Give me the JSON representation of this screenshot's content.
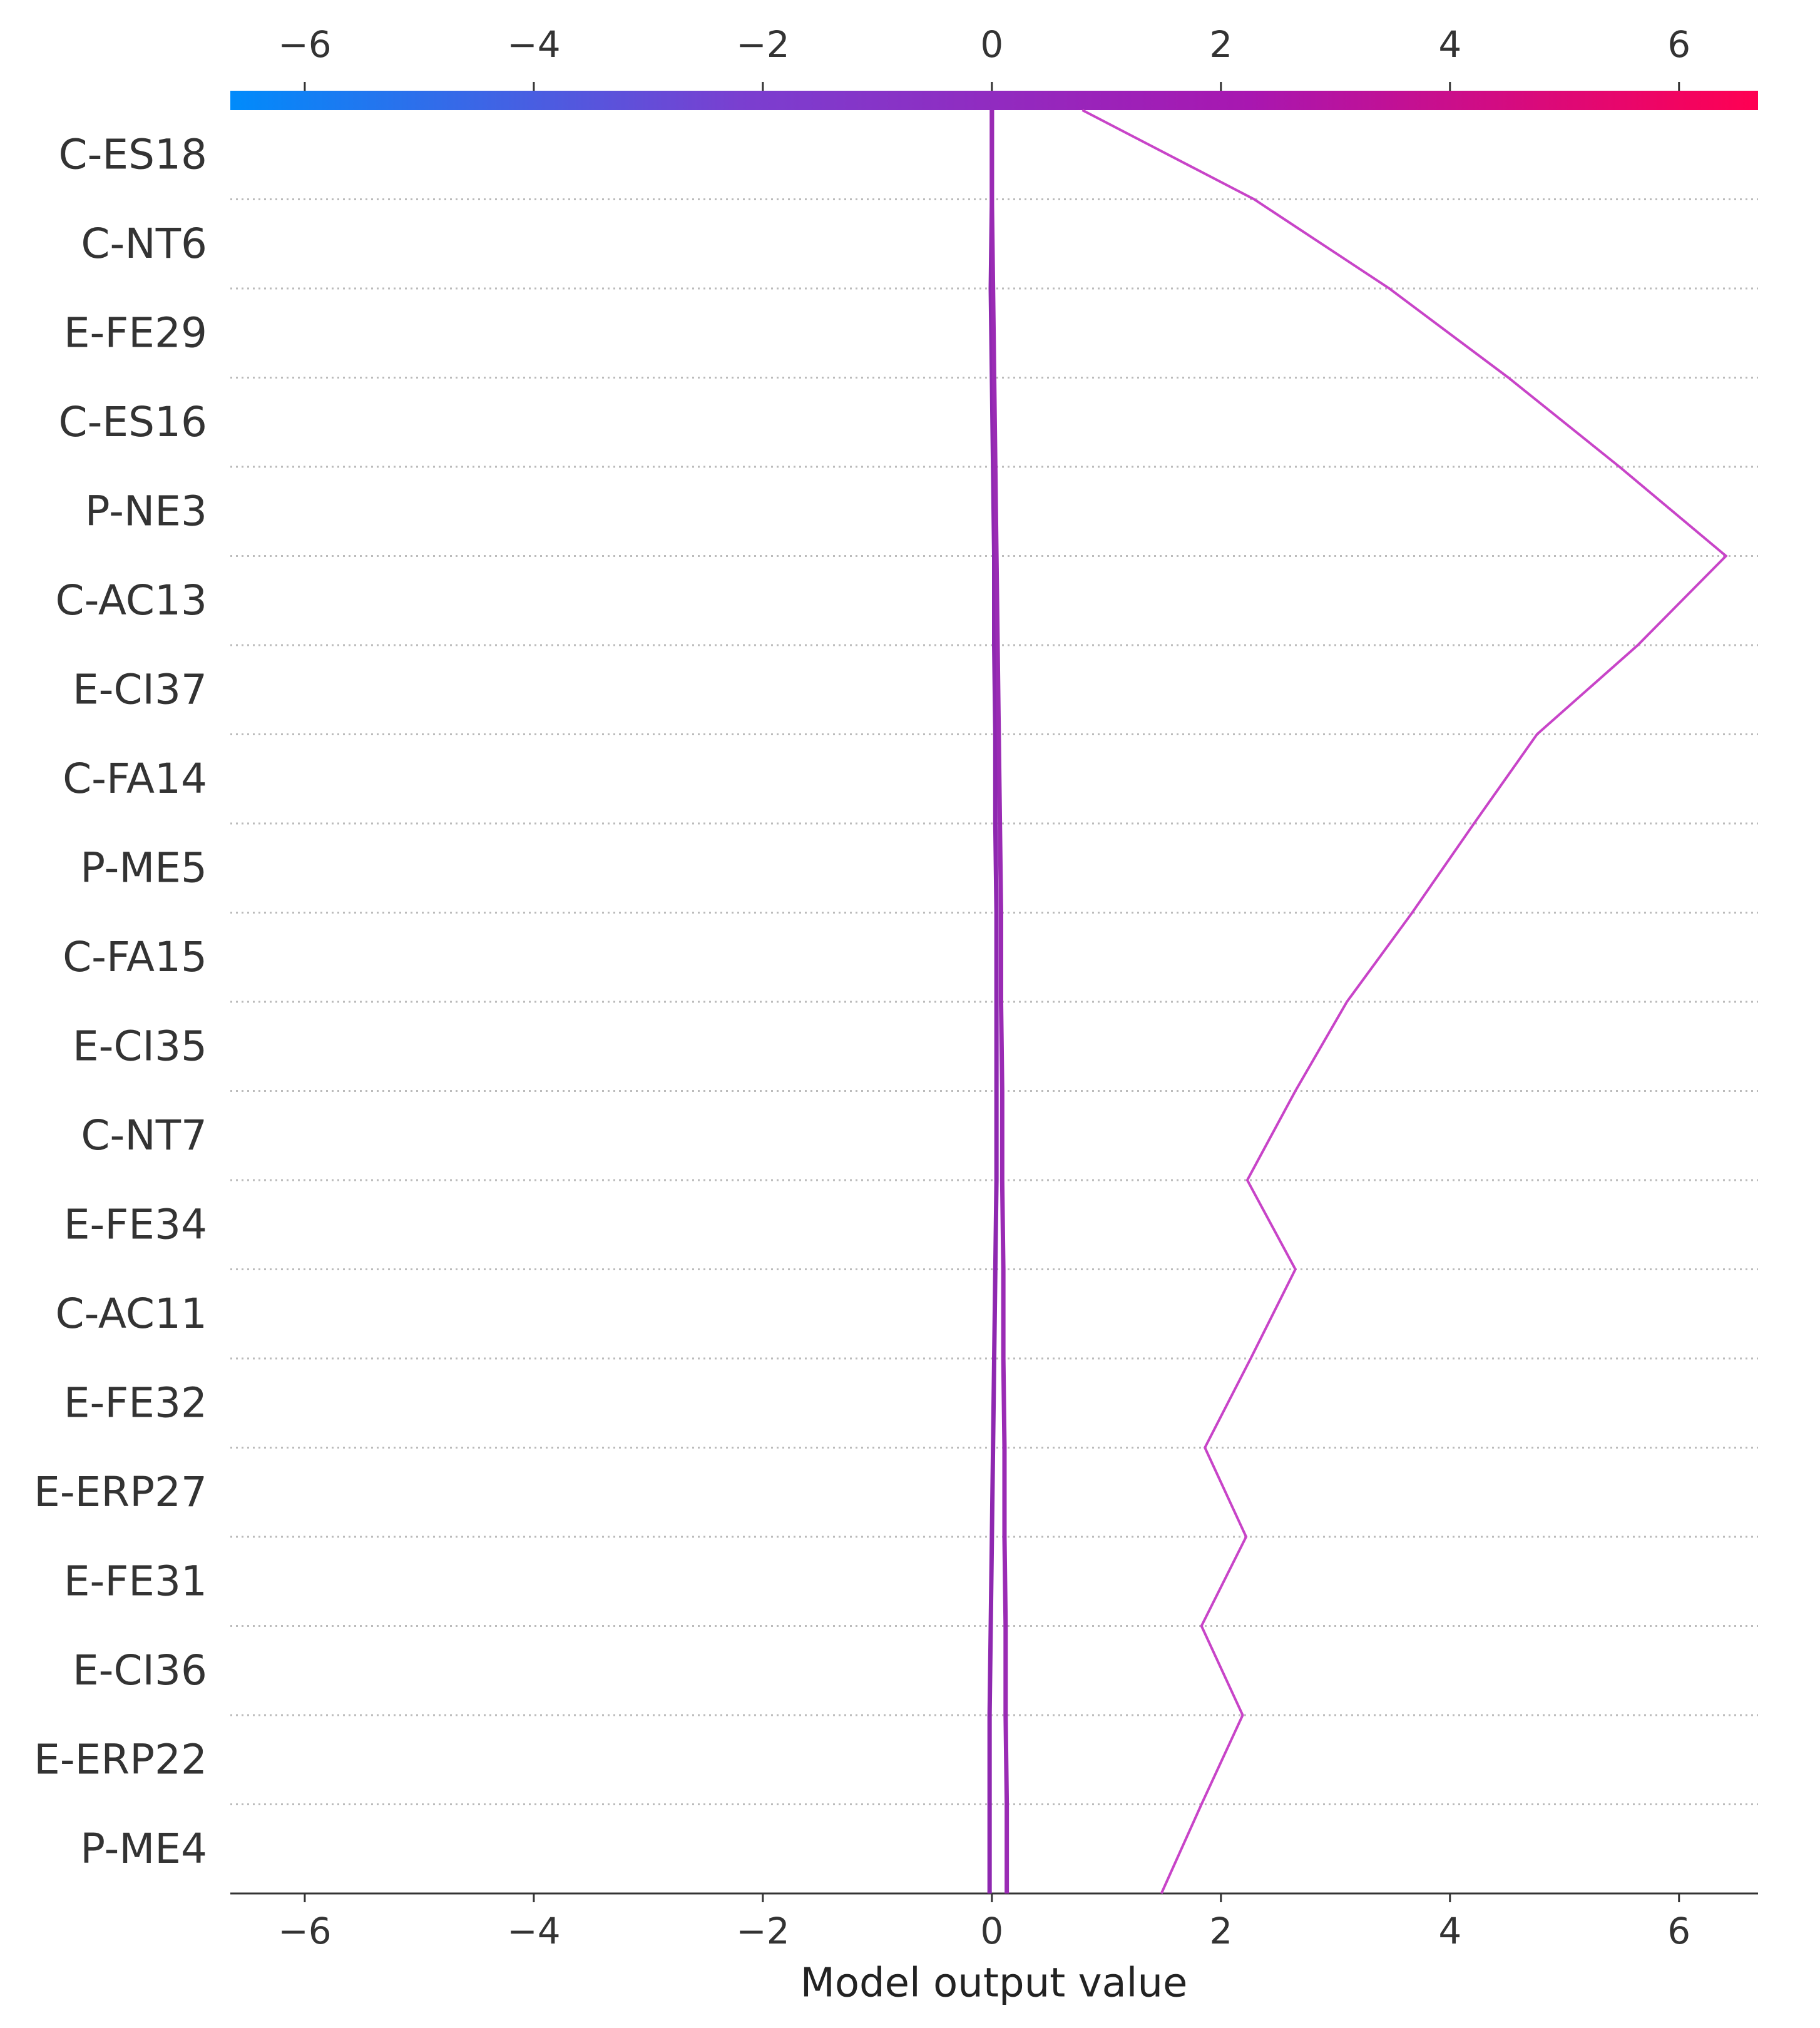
{
  "chart_data": {
    "type": "decision",
    "xlabel": "Model output value",
    "features": [
      "C-ES18",
      "C-NT6",
      "E-FE29",
      "C-ES16",
      "P-NE3",
      "C-AC13",
      "E-CI37",
      "C-FA14",
      "P-ME5",
      "C-FA15",
      "E-CI35",
      "C-NT7",
      "E-FE34",
      "C-AC11",
      "E-FE32",
      "E-ERP27",
      "E-FE31",
      "E-CI36",
      "E-ERP22",
      "P-ME4"
    ],
    "series": [
      {
        "color": "#c844c8",
        "values": [
          0.79,
          2.29,
          3.47,
          4.51,
          5.48,
          6.41,
          5.64,
          4.76,
          4.21,
          3.67,
          3.1,
          2.65,
          2.23,
          2.65,
          2.26,
          1.86,
          2.22,
          1.83,
          2.19,
          1.83,
          1.48
        ]
      },
      {
        "color": "#9a2bb4",
        "values": [
          0.0,
          0.0,
          0.01,
          0.02,
          0.03,
          0.04,
          0.05,
          0.06,
          0.07,
          0.08,
          0.08,
          0.09,
          0.09,
          0.1,
          0.1,
          0.11,
          0.11,
          0.12,
          0.12,
          0.13,
          0.13
        ]
      },
      {
        "color": "#8e28b0",
        "values": [
          0.0,
          0.0,
          -0.01,
          0.0,
          0.01,
          0.02,
          0.02,
          0.03,
          0.03,
          0.04,
          0.04,
          0.04,
          0.04,
          0.03,
          0.02,
          0.01,
          0.0,
          -0.01,
          -0.02,
          -0.02,
          -0.02
        ]
      }
    ],
    "xlim": [
      -6.65,
      6.69
    ],
    "xticks": [
      {
        "value": -6,
        "label": "−6"
      },
      {
        "value": -4,
        "label": "−4"
      },
      {
        "value": -2,
        "label": "−2"
      },
      0,
      2,
      4,
      6
    ],
    "colorbar": [
      "#008bfb",
      "#7a3fd0",
      "#a817b0",
      "#ff0052"
    ],
    "row_grid": true
  }
}
